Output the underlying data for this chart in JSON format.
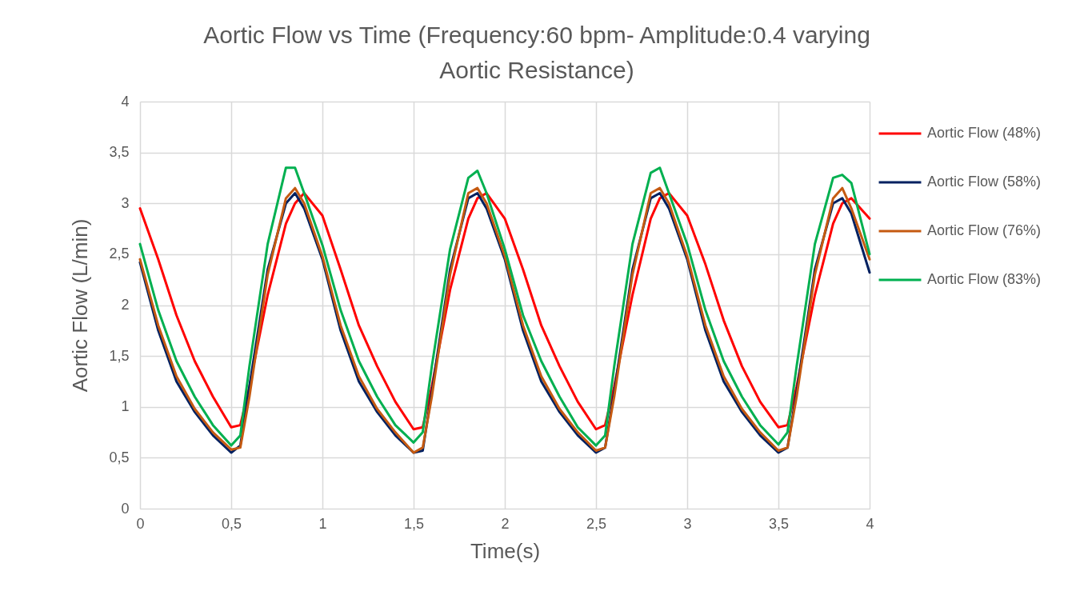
{
  "chart_data": {
    "type": "line",
    "title": "Aortic Flow vs Time (Frequency:60 bpm- Amplitude:0.4 varying Aortic Resistance)",
    "xlabel": "Time(s)",
    "ylabel": "Aortic Flow (L/min)",
    "x": [
      0,
      0.1,
      0.2,
      0.3,
      0.4,
      0.5,
      0.55,
      0.6,
      0.7,
      0.8,
      0.85,
      0.9,
      1,
      1.1,
      1.2,
      1.3,
      1.4,
      1.5,
      1.55,
      1.6,
      1.7,
      1.8,
      1.85,
      1.9,
      2,
      2.1,
      2.2,
      2.3,
      2.4,
      2.5,
      2.55,
      2.6,
      2.7,
      2.8,
      2.85,
      2.9,
      3,
      3.1,
      3.2,
      3.3,
      3.4,
      3.5,
      3.55,
      3.6,
      3.7,
      3.8,
      3.85,
      3.9,
      4
    ],
    "series": [
      {
        "name": "Aortic Flow (48%)",
        "color": "#ff0000",
        "values": [
          2.95,
          2.45,
          1.9,
          1.45,
          1.1,
          0.8,
          0.82,
          1.2,
          2.1,
          2.8,
          3.0,
          3.1,
          2.88,
          2.35,
          1.8,
          1.4,
          1.05,
          0.78,
          0.8,
          1.2,
          2.15,
          2.85,
          3.05,
          3.1,
          2.85,
          2.35,
          1.8,
          1.4,
          1.05,
          0.78,
          0.82,
          1.2,
          2.1,
          2.85,
          3.05,
          3.1,
          2.88,
          2.4,
          1.85,
          1.4,
          1.05,
          0.8,
          0.82,
          1.2,
          2.1,
          2.8,
          3.0,
          3.05,
          2.85
        ]
      },
      {
        "name": "Aortic Flow (58%)",
        "color": "#002060",
        "values": [
          2.42,
          1.75,
          1.25,
          0.95,
          0.72,
          0.55,
          0.62,
          1.2,
          2.35,
          3.0,
          3.1,
          2.95,
          2.45,
          1.75,
          1.25,
          0.95,
          0.72,
          0.55,
          0.57,
          1.15,
          2.35,
          3.05,
          3.1,
          2.95,
          2.45,
          1.75,
          1.25,
          0.95,
          0.72,
          0.55,
          0.6,
          1.15,
          2.35,
          3.05,
          3.1,
          2.95,
          2.45,
          1.75,
          1.25,
          0.95,
          0.72,
          0.55,
          0.6,
          1.15,
          2.35,
          3.0,
          3.05,
          2.9,
          2.32
        ]
      },
      {
        "name": "Aortic Flow (76%)",
        "color": "#c55a11",
        "values": [
          2.45,
          1.8,
          1.3,
          0.98,
          0.75,
          0.58,
          0.6,
          1.1,
          2.3,
          3.05,
          3.15,
          3.0,
          2.48,
          1.8,
          1.3,
          0.98,
          0.75,
          0.55,
          0.6,
          1.1,
          2.3,
          3.1,
          3.15,
          3.0,
          2.48,
          1.8,
          1.3,
          0.98,
          0.75,
          0.57,
          0.6,
          1.1,
          2.3,
          3.1,
          3.15,
          3.0,
          2.48,
          1.8,
          1.3,
          0.98,
          0.75,
          0.57,
          0.6,
          1.1,
          2.3,
          3.05,
          3.15,
          2.95,
          2.45
        ]
      },
      {
        "name": "Aortic Flow (83%)",
        "color": "#00b050",
        "values": [
          2.6,
          1.95,
          1.45,
          1.1,
          0.82,
          0.62,
          0.72,
          1.4,
          2.6,
          3.35,
          3.35,
          3.1,
          2.59,
          1.95,
          1.45,
          1.1,
          0.82,
          0.65,
          0.75,
          1.4,
          2.55,
          3.25,
          3.32,
          3.1,
          2.55,
          1.9,
          1.45,
          1.1,
          0.8,
          0.62,
          0.72,
          1.4,
          2.6,
          3.3,
          3.35,
          3.1,
          2.6,
          1.95,
          1.45,
          1.1,
          0.82,
          0.63,
          0.75,
          1.4,
          2.6,
          3.25,
          3.28,
          3.2,
          2.5
        ]
      }
    ],
    "xlim": [
      0,
      4
    ],
    "xticks": [
      0,
      {
        "value": 0.5,
        "label": "0,5"
      },
      1,
      {
        "value": 1.5,
        "label": "1,5"
      },
      2,
      {
        "value": 2.5,
        "label": "2,5"
      },
      3,
      {
        "value": 3.5,
        "label": "3,5"
      },
      4
    ],
    "ylim": [
      0,
      4
    ],
    "yticks": [
      0,
      {
        "value": 0.5,
        "label": "0,5"
      },
      1,
      {
        "value": 1.5,
        "label": "1,5"
      },
      2,
      {
        "value": 2.5,
        "label": "2,5"
      },
      3,
      {
        "value": 3.5,
        "label": "3,5"
      },
      4
    ],
    "grid": true,
    "legend": "right"
  }
}
